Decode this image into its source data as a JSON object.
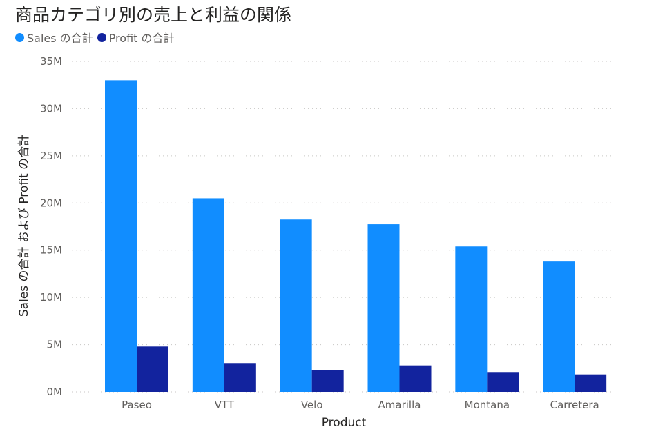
{
  "chart_data": {
    "type": "bar",
    "title": "商品カテゴリ別の売上と利益の関係",
    "xlabel": "Product",
    "ylabel": "Sales の合計 および Profit の合計",
    "categories": [
      "Paseo",
      "VTT",
      "Velo",
      "Amarilla",
      "Montana",
      "Carretera"
    ],
    "series": [
      {
        "name": "Sales の合計",
        "color": "#118dff",
        "values": [
          33000000,
          20500000,
          18250000,
          17750000,
          15400000,
          13800000
        ]
      },
      {
        "name": "Profit の合計",
        "color": "#12239e",
        "values": [
          4800000,
          3050000,
          2300000,
          2800000,
          2100000,
          1850000
        ]
      }
    ],
    "ylim": [
      0,
      35000000
    ],
    "yticks": [
      0,
      5000000,
      10000000,
      15000000,
      20000000,
      25000000,
      30000000,
      35000000
    ],
    "ytick_labels": [
      "0M",
      "5M",
      "10M",
      "15M",
      "20M",
      "25M",
      "30M",
      "35M"
    ],
    "grid": true,
    "legend_position": "top-left"
  }
}
